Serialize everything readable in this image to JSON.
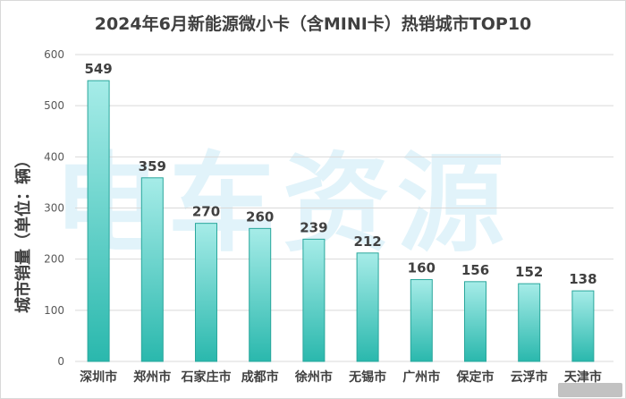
{
  "chart_data": {
    "type": "bar",
    "title": "2024年6月新能源微小卡（含MINI卡）热销城市TOP10",
    "ylabel": "城市销量（单位：辆）",
    "xlabel": "",
    "categories": [
      "深圳市",
      "郑州市",
      "石家庄市",
      "成都市",
      "徐州市",
      "无锡市",
      "广州市",
      "保定市",
      "云浮市",
      "天津市"
    ],
    "values": [
      549,
      359,
      270,
      260,
      239,
      212,
      160,
      156,
      152,
      138
    ],
    "ylim": [
      0,
      600
    ],
    "yticks": [
      0,
      100,
      200,
      300,
      400,
      500,
      600
    ],
    "grid": true,
    "legend": "none",
    "colors": {
      "bar_top": "#a6ece8",
      "bar_bottom": "#2ab8ad",
      "bar_edge": "#2aa79c",
      "grid": "#d9d9d9",
      "text": "#404040"
    }
  },
  "watermark": "电车资源"
}
